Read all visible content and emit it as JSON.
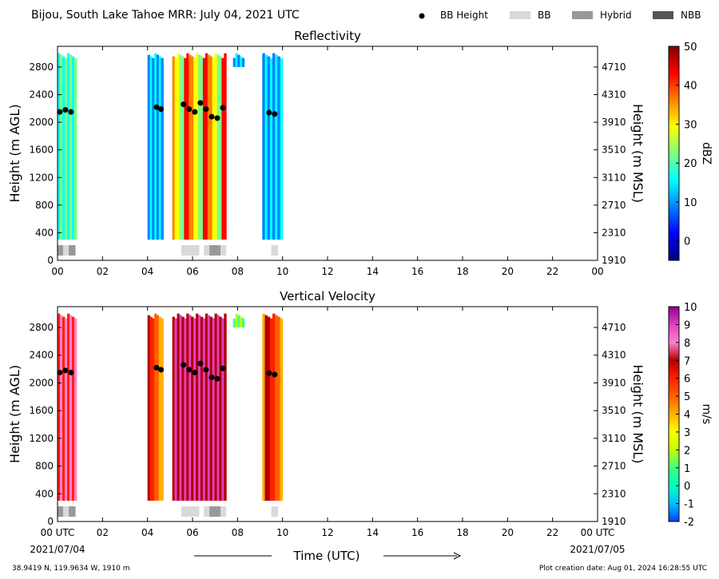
{
  "header": {
    "title": "Bijou, South Lake Tahoe MRR:  July 04, 2021 UTC",
    "legend": [
      {
        "label": "BB Height",
        "kind": "dot",
        "color": "#000000"
      },
      {
        "label": "BB",
        "kind": "rect",
        "color": "#d9d9d9"
      },
      {
        "label": "Hybrid",
        "kind": "rect",
        "color": "#999999"
      },
      {
        "label": "NBB",
        "kind": "rect",
        "color": "#555555"
      }
    ]
  },
  "footer": {
    "location": "38.9419 N, 119.9634 W, 1910 m",
    "creation": "Plot creation date: Aug 01, 2024 16:28:55 UTC",
    "xlabel": "Time (UTC)",
    "start_date": "2021/07/04",
    "end_date": "2021/07/05"
  },
  "chart_data": [
    {
      "type": "heatmap",
      "title": "Reflectivity",
      "ylabel": "Height (m AGL)",
      "y2label": "Height (m MSL)",
      "colorbar_label": "dBZ",
      "colorbar_ticks": [
        "50",
        "40",
        "30",
        "20",
        "10",
        "0"
      ],
      "colorbar_range": [
        -5,
        50
      ],
      "colors": [
        "#00007f",
        "#0000ff",
        "#0080ff",
        "#00ffff",
        "#80ff80",
        "#ffff00",
        "#ff8000",
        "#ff0000",
        "#7f0000"
      ],
      "x_ticks": [
        "00",
        "02",
        "04",
        "06",
        "08",
        "10",
        "12",
        "14",
        "16",
        "18",
        "20",
        "22",
        "00"
      ],
      "xlim": [
        0,
        24
      ],
      "ylim": [
        0,
        3100
      ],
      "y_ticks": [
        "0",
        "400",
        "800",
        "1200",
        "1600",
        "2000",
        "2400",
        "2800"
      ],
      "y2_ticks": [
        "1910",
        "2310",
        "2710",
        "3110",
        "3510",
        "3910",
        "4310",
        "4710"
      ],
      "data_segments": [
        {
          "t0": 0.0,
          "t1": 0.85,
          "h0": 300,
          "h1": 3000,
          "level": "moderate"
        },
        {
          "t0": 4.0,
          "t1": 4.7,
          "h0": 300,
          "h1": 3000,
          "level": "light"
        },
        {
          "t0": 5.1,
          "t1": 7.5,
          "h0": 300,
          "h1": 3000,
          "level": "heavy"
        },
        {
          "t0": 7.8,
          "t1": 8.3,
          "h0": 2800,
          "h1": 3000,
          "level": "light"
        },
        {
          "t0": 9.1,
          "t1": 10.0,
          "h0": 300,
          "h1": 3000,
          "level": "light"
        }
      ],
      "bb_height_points": [
        {
          "t": 0.1,
          "h": 2150
        },
        {
          "t": 0.35,
          "h": 2180
        },
        {
          "t": 0.6,
          "h": 2150
        },
        {
          "t": 4.4,
          "h": 2220
        },
        {
          "t": 4.6,
          "h": 2190
        },
        {
          "t": 5.6,
          "h": 2260
        },
        {
          "t": 5.85,
          "h": 2190
        },
        {
          "t": 6.1,
          "h": 2150
        },
        {
          "t": 6.35,
          "h": 2280
        },
        {
          "t": 6.6,
          "h": 2190
        },
        {
          "t": 6.85,
          "h": 2080
        },
        {
          "t": 7.1,
          "h": 2060
        },
        {
          "t": 7.35,
          "h": 2210
        },
        {
          "t": 9.4,
          "h": 2140
        },
        {
          "t": 9.65,
          "h": 2120
        }
      ],
      "bb_type_bar": [
        {
          "t0": 0.0,
          "t1": 0.25,
          "type": "Hybrid"
        },
        {
          "t0": 0.25,
          "t1": 0.5,
          "type": "BB"
        },
        {
          "t0": 0.5,
          "t1": 0.8,
          "type": "Hybrid"
        },
        {
          "t0": 5.5,
          "t1": 6.3,
          "type": "BB"
        },
        {
          "t0": 6.5,
          "t1": 6.75,
          "type": "BB"
        },
        {
          "t0": 6.75,
          "t1": 7.25,
          "type": "Hybrid"
        },
        {
          "t0": 7.25,
          "t1": 7.5,
          "type": "BB"
        },
        {
          "t0": 9.5,
          "t1": 9.8,
          "type": "BB"
        }
      ]
    },
    {
      "type": "heatmap",
      "title": "Vertical Velocity",
      "ylabel": "Height (m AGL)",
      "y2label": "Height (m MSL)",
      "colorbar_label": "m/s",
      "colorbar_ticks": [
        "10",
        "9",
        "8",
        "7",
        "6",
        "5",
        "4",
        "3",
        "2",
        "1",
        "0",
        "-1",
        "-2"
      ],
      "colorbar_range": [
        -2,
        10
      ],
      "colors": [
        "#0040ff",
        "#00c0ff",
        "#00ffc0",
        "#40ff80",
        "#c0ff00",
        "#ffff00",
        "#ffb000",
        "#ff6000",
        "#ff2000",
        "#b00000",
        "#ff80d0",
        "#e040c0",
        "#900090"
      ],
      "x_ticks": [
        "00 UTC",
        "02",
        "04",
        "06",
        "08",
        "10",
        "12",
        "14",
        "16",
        "18",
        "20",
        "22",
        "00 UTC"
      ],
      "xlim": [
        0,
        24
      ],
      "ylim": [
        0,
        3100
      ],
      "y_ticks": [
        "0",
        "400",
        "800",
        "1200",
        "1600",
        "2000",
        "2400",
        "2800"
      ],
      "y2_ticks": [
        "1910",
        "2310",
        "2710",
        "3110",
        "3510",
        "3910",
        "4310",
        "4710"
      ],
      "data_segments": [
        {
          "t0": 0.0,
          "t1": 0.85,
          "h0": 300,
          "h1": 3000,
          "level": "fast"
        },
        {
          "t0": 4.0,
          "t1": 4.7,
          "h0": 300,
          "h1": 3000,
          "level": "moderate"
        },
        {
          "t0": 5.1,
          "t1": 7.5,
          "h0": 300,
          "h1": 3000,
          "level": "fast"
        },
        {
          "t0": 7.8,
          "t1": 8.3,
          "h0": 2800,
          "h1": 3000,
          "level": "slow"
        },
        {
          "t0": 9.1,
          "t1": 10.0,
          "h0": 300,
          "h1": 3000,
          "level": "moderate"
        }
      ],
      "bb_height_points": [
        {
          "t": 0.1,
          "h": 2150
        },
        {
          "t": 0.35,
          "h": 2180
        },
        {
          "t": 0.6,
          "h": 2150
        },
        {
          "t": 4.4,
          "h": 2220
        },
        {
          "t": 4.6,
          "h": 2190
        },
        {
          "t": 5.6,
          "h": 2260
        },
        {
          "t": 5.85,
          "h": 2190
        },
        {
          "t": 6.1,
          "h": 2150
        },
        {
          "t": 6.35,
          "h": 2280
        },
        {
          "t": 6.6,
          "h": 2190
        },
        {
          "t": 6.85,
          "h": 2080
        },
        {
          "t": 7.1,
          "h": 2060
        },
        {
          "t": 7.35,
          "h": 2210
        },
        {
          "t": 9.4,
          "h": 2140
        },
        {
          "t": 9.65,
          "h": 2120
        }
      ],
      "bb_type_bar": [
        {
          "t0": 0.0,
          "t1": 0.25,
          "type": "Hybrid"
        },
        {
          "t0": 0.25,
          "t1": 0.5,
          "type": "BB"
        },
        {
          "t0": 0.5,
          "t1": 0.8,
          "type": "Hybrid"
        },
        {
          "t0": 5.5,
          "t1": 6.3,
          "type": "BB"
        },
        {
          "t0": 6.5,
          "t1": 6.75,
          "type": "BB"
        },
        {
          "t0": 6.75,
          "t1": 7.25,
          "type": "Hybrid"
        },
        {
          "t0": 7.25,
          "t1": 7.5,
          "type": "BB"
        },
        {
          "t0": 9.5,
          "t1": 9.8,
          "type": "BB"
        }
      ]
    }
  ]
}
